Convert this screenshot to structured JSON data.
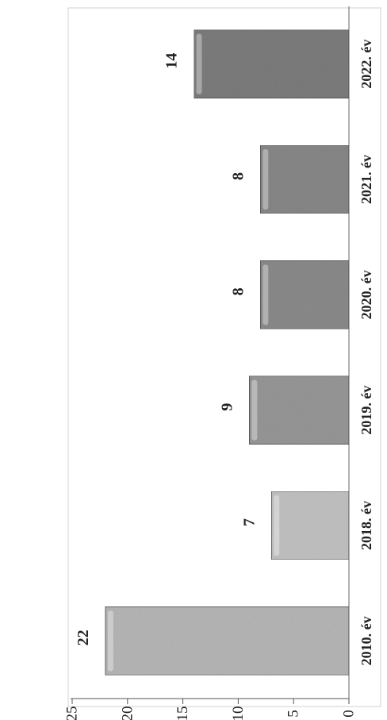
{
  "chart_data": {
    "type": "bar",
    "categories": [
      "2010. év",
      "2018. év",
      "2019. év",
      "2020. év",
      "2021. év",
      "2022. év"
    ],
    "values": [
      22,
      7,
      9,
      8,
      8,
      14
    ],
    "data_labels": [
      "22",
      "7",
      "9",
      "8",
      "8",
      "14"
    ],
    "title": "",
    "xlabel": "",
    "ylabel": "",
    "ylim": [
      0,
      25
    ],
    "yticks": [
      "0",
      "5",
      "10",
      "15",
      "20",
      "25"
    ],
    "orientation": "rotated-90",
    "grid": false,
    "legend": "none",
    "bar_colors": [
      "#b9b9b9",
      "#c4c4c4",
      "#9a9a9a",
      "#8d8d8d",
      "#8a8a8a",
      "#7f7f7f"
    ]
  }
}
